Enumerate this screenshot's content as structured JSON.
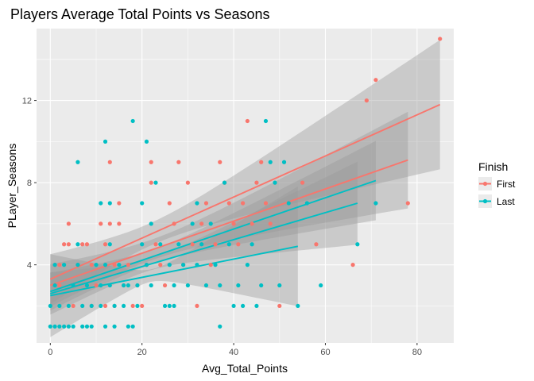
{
  "chart_data": {
    "type": "scatter",
    "title": "Players Average Total Points vs Seasons",
    "xlabel": "Avg_Total_Points",
    "ylabel": "PLayer_Seasons",
    "xlim": [
      -3,
      88
    ],
    "ylim": [
      0.2,
      15.5
    ],
    "x_ticks": [
      0,
      20,
      40,
      60,
      80
    ],
    "x_tick_labels": [
      "0",
      "20",
      "40",
      "60",
      "80"
    ],
    "y_ticks": [
      4,
      8,
      12
    ],
    "y_tick_labels": [
      "4",
      "8",
      "12"
    ],
    "grid": true,
    "legend": {
      "title": "Finish",
      "position": "right",
      "entries": [
        {
          "name": "First",
          "color": "#f8766d"
        },
        {
          "name": "Last",
          "color": "#00bfc4"
        }
      ]
    },
    "series": [
      {
        "name": "First",
        "color": "#f8766d",
        "points": [
          [
            1,
            4
          ],
          [
            2,
            4
          ],
          [
            2,
            3
          ],
          [
            3,
            5
          ],
          [
            4,
            5
          ],
          [
            4,
            6
          ],
          [
            5,
            3
          ],
          [
            5,
            2
          ],
          [
            6,
            4
          ],
          [
            7,
            5
          ],
          [
            8,
            5
          ],
          [
            9,
            4
          ],
          [
            8,
            3
          ],
          [
            9,
            2
          ],
          [
            10,
            3
          ],
          [
            11,
            6
          ],
          [
            12,
            5
          ],
          [
            12,
            2
          ],
          [
            13,
            9
          ],
          [
            13,
            6
          ],
          [
            14,
            4
          ],
          [
            14,
            2
          ],
          [
            15,
            7
          ],
          [
            15,
            6
          ],
          [
            16,
            3
          ],
          [
            17,
            4
          ],
          [
            18,
            2
          ],
          [
            19,
            3
          ],
          [
            20,
            2
          ],
          [
            21,
            4
          ],
          [
            22,
            9
          ],
          [
            22,
            8
          ],
          [
            23,
            5
          ],
          [
            24,
            4
          ],
          [
            25,
            3
          ],
          [
            26,
            7
          ],
          [
            27,
            6
          ],
          [
            28,
            9
          ],
          [
            29,
            4
          ],
          [
            30,
            8
          ],
          [
            31,
            5
          ],
          [
            32,
            2
          ],
          [
            33,
            6
          ],
          [
            34,
            7
          ],
          [
            35,
            4
          ],
          [
            36,
            5
          ],
          [
            37,
            9
          ],
          [
            38,
            8
          ],
          [
            39,
            7
          ],
          [
            40,
            6
          ],
          [
            41,
            5
          ],
          [
            42,
            7
          ],
          [
            43,
            11
          ],
          [
            44,
            6
          ],
          [
            45,
            8
          ],
          [
            46,
            9
          ],
          [
            47,
            7
          ],
          [
            48,
            6
          ],
          [
            50,
            2
          ],
          [
            52,
            7
          ],
          [
            55,
            8
          ],
          [
            58,
            5
          ],
          [
            66,
            4
          ],
          [
            69,
            12
          ],
          [
            71,
            13
          ],
          [
            78,
            7
          ],
          [
            85,
            15
          ]
        ],
        "fits": [
          {
            "x": [
              0,
              85
            ],
            "y": [
              3.3,
              11.8
            ],
            "band_width": [
              0.55,
              3.1
            ]
          },
          {
            "x": [
              0,
              78
            ],
            "y": [
              3.0,
              9.1
            ],
            "band_width": [
              0.5,
              2.3
            ]
          }
        ]
      },
      {
        "name": "Last",
        "color": "#00bfc4",
        "points": [
          [
            0,
            2
          ],
          [
            0,
            1
          ],
          [
            1,
            4
          ],
          [
            1,
            3
          ],
          [
            1,
            1
          ],
          [
            2,
            2
          ],
          [
            2,
            1
          ],
          [
            3,
            4
          ],
          [
            3,
            1
          ],
          [
            4,
            2
          ],
          [
            4,
            1
          ],
          [
            5,
            3
          ],
          [
            5,
            1
          ],
          [
            6,
            9
          ],
          [
            6,
            5
          ],
          [
            6,
            4
          ],
          [
            7,
            2
          ],
          [
            7,
            1
          ],
          [
            8,
            3
          ],
          [
            8,
            1
          ],
          [
            9,
            2
          ],
          [
            9,
            1
          ],
          [
            10,
            4
          ],
          [
            11,
            7
          ],
          [
            11,
            3
          ],
          [
            11,
            2
          ],
          [
            12,
            10
          ],
          [
            12,
            4
          ],
          [
            12,
            1
          ],
          [
            13,
            7
          ],
          [
            13,
            5
          ],
          [
            13,
            3
          ],
          [
            14,
            2
          ],
          [
            14,
            1
          ],
          [
            15,
            4
          ],
          [
            16,
            3
          ],
          [
            16,
            2
          ],
          [
            17,
            3
          ],
          [
            17,
            1
          ],
          [
            18,
            11
          ],
          [
            18,
            1
          ],
          [
            19,
            3
          ],
          [
            19,
            2
          ],
          [
            20,
            7
          ],
          [
            20,
            5
          ],
          [
            21,
            10
          ],
          [
            21,
            4
          ],
          [
            22,
            6
          ],
          [
            22,
            3
          ],
          [
            23,
            8
          ],
          [
            24,
            5
          ],
          [
            25,
            2
          ],
          [
            26,
            4
          ],
          [
            26,
            2
          ],
          [
            27,
            3
          ],
          [
            27,
            2
          ],
          [
            28,
            5
          ],
          [
            29,
            4
          ],
          [
            30,
            3
          ],
          [
            31,
            6
          ],
          [
            32,
            7
          ],
          [
            32,
            4
          ],
          [
            33,
            5
          ],
          [
            34,
            3
          ],
          [
            35,
            6
          ],
          [
            36,
            4
          ],
          [
            37,
            3
          ],
          [
            37,
            1
          ],
          [
            38,
            8
          ],
          [
            39,
            5
          ],
          [
            40,
            2
          ],
          [
            41,
            3
          ],
          [
            42,
            2
          ],
          [
            43,
            4
          ],
          [
            44,
            5
          ],
          [
            45,
            2
          ],
          [
            46,
            3
          ],
          [
            47,
            11
          ],
          [
            48,
            9
          ],
          [
            49,
            8
          ],
          [
            50,
            3
          ],
          [
            51,
            9
          ],
          [
            52,
            7
          ],
          [
            54,
            2
          ],
          [
            56,
            7
          ],
          [
            59,
            3
          ],
          [
            67,
            5
          ],
          [
            71,
            7
          ]
        ],
        "fits": [
          {
            "x": [
              0,
              71
            ],
            "y": [
              2.7,
              8.1
            ],
            "band_width": [
              0.35,
              1.9
            ]
          },
          {
            "x": [
              0,
              54
            ],
            "y": [
              2.5,
              4.9
            ],
            "band_width": [
              0.3,
              2.9
            ]
          },
          {
            "x": [
              0,
              67
            ],
            "y": [
              2.6,
              7.0
            ],
            "band_width": [
              0.3,
              2.0
            ]
          }
        ]
      }
    ]
  }
}
